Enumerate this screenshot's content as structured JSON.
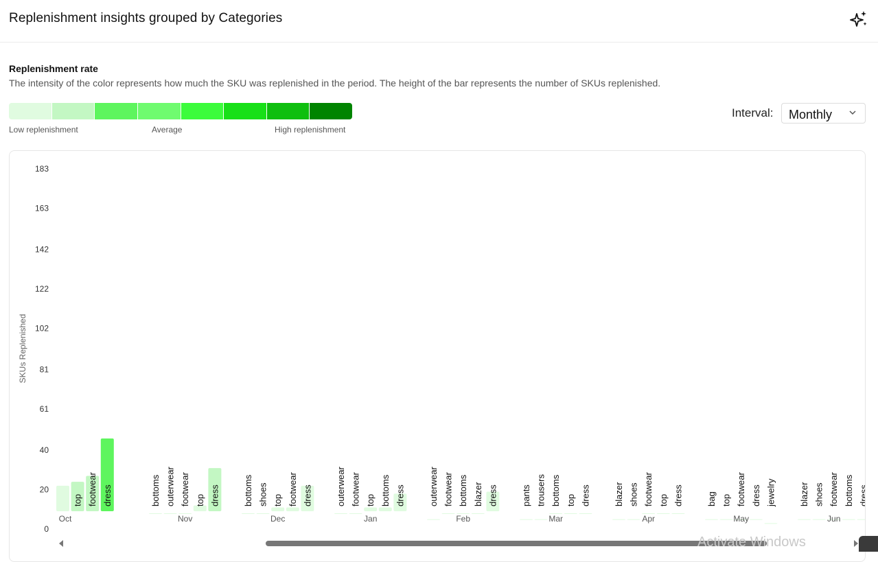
{
  "header": {
    "title": "Replenishment insights grouped by Categories",
    "sparkle_icon": "sparkle-icon"
  },
  "legend": {
    "title": "Replenishment rate",
    "description": "The intensity of the color represents how much the SKU was replenished in the period. The height of the bar represents the number of SKUs replenished.",
    "scale_colors": [
      "#e0fbe0",
      "#c3f7c3",
      "#5ef55e",
      "#6ffb6f",
      "#3cfc3c",
      "#18e018",
      "#0fbf0f",
      "#008400"
    ],
    "low_label": "Low replenishment",
    "avg_label": "Average",
    "high_label": "High replenishment"
  },
  "interval": {
    "label": "Interval:",
    "value": "Monthly"
  },
  "watermark": "Activate Windows",
  "chart_data": {
    "type": "bar",
    "ylabel": "SKUs Replenished",
    "yticks": [
      0,
      20,
      40,
      61,
      81,
      102,
      122,
      142,
      163,
      183
    ],
    "ylim": [
      0,
      183
    ],
    "months": [
      {
        "label": "Oct",
        "bars": [
          {
            "category": "",
            "value": 22,
            "color": "#e0fbe0"
          },
          {
            "category": "top",
            "value": 24,
            "color": "#c3f7c3"
          },
          {
            "category": "footwear",
            "value": 27,
            "color": "#c3f7c3"
          },
          {
            "category": "dress",
            "value": 46,
            "color": "#5ef55e"
          }
        ]
      },
      {
        "label": "Nov",
        "bars": [
          {
            "category": "bottoms",
            "value": 8,
            "color": "#e0fbe0"
          },
          {
            "category": "outerwear",
            "value": 8,
            "color": "#e0fbe0"
          },
          {
            "category": "footwear",
            "value": 8,
            "color": "#e0fbe0"
          },
          {
            "category": "top",
            "value": 12,
            "color": "#e0fbe0"
          },
          {
            "category": "dress",
            "value": 31,
            "color": "#c3f7c3"
          }
        ]
      },
      {
        "label": "Dec",
        "bars": [
          {
            "category": "bottoms",
            "value": 8,
            "color": "#e0fbe0"
          },
          {
            "category": "shoes",
            "value": 8,
            "color": "#e0fbe0"
          },
          {
            "category": "top",
            "value": 11,
            "color": "#e0fbe0"
          },
          {
            "category": "footwear",
            "value": 11,
            "color": "#e0fbe0"
          },
          {
            "category": "dress",
            "value": 22,
            "color": "#e0fbe0"
          }
        ]
      },
      {
        "label": "Jan",
        "bars": [
          {
            "category": "outerwear",
            "value": 8,
            "color": "#e0fbe0"
          },
          {
            "category": "footwear",
            "value": 8,
            "color": "#e0fbe0"
          },
          {
            "category": "top",
            "value": 11,
            "color": "#e0fbe0"
          },
          {
            "category": "bottoms",
            "value": 11,
            "color": "#e0fbe0"
          },
          {
            "category": "dress",
            "value": 18,
            "color": "#e0fbe0"
          }
        ]
      },
      {
        "label": "Feb",
        "bars": [
          {
            "category": "outerwear",
            "value": 5,
            "color": "#e0fbe0"
          },
          {
            "category": "footwear",
            "value": 8,
            "color": "#e0fbe0"
          },
          {
            "category": "bottoms",
            "value": 8,
            "color": "#e0fbe0"
          },
          {
            "category": "blazer",
            "value": 8,
            "color": "#e0fbe0"
          },
          {
            "category": "dress",
            "value": 19,
            "color": "#e0fbe0"
          }
        ]
      },
      {
        "label": "Mar",
        "bars": [
          {
            "category": "pants",
            "value": 5,
            "color": "#e0fbe0"
          },
          {
            "category": "trousers",
            "value": 5,
            "color": "#e0fbe0"
          },
          {
            "category": "bottoms",
            "value": 8,
            "color": "#e0fbe0"
          },
          {
            "category": "top",
            "value": 8,
            "color": "#e0fbe0"
          },
          {
            "category": "dress",
            "value": 8,
            "color": "#e0fbe0"
          }
        ]
      },
      {
        "label": "Apr",
        "bars": [
          {
            "category": "blazer",
            "value": 5,
            "color": "#e0fbe0"
          },
          {
            "category": "shoes",
            "value": 5,
            "color": "#e0fbe0"
          },
          {
            "category": "footwear",
            "value": 8,
            "color": "#e0fbe0"
          },
          {
            "category": "top",
            "value": 8,
            "color": "#e0fbe0"
          },
          {
            "category": "dress",
            "value": 8,
            "color": "#e0fbe0"
          }
        ]
      },
      {
        "label": "May",
        "bars": [
          {
            "category": "bag",
            "value": 5,
            "color": "#e0fbe0"
          },
          {
            "category": "top",
            "value": 5,
            "color": "#e0fbe0"
          },
          {
            "category": "footwear",
            "value": 5,
            "color": "#e0fbe0"
          },
          {
            "category": "dress",
            "value": 5,
            "color": "#e0fbe0"
          },
          {
            "category": "jewelry",
            "value": 3,
            "color": "#e0fbe0"
          }
        ]
      },
      {
        "label": "Jun",
        "bars": [
          {
            "category": "blazer",
            "value": 5,
            "color": "#e0fbe0"
          },
          {
            "category": "shoes",
            "value": 5,
            "color": "#e0fbe0"
          },
          {
            "category": "footwear",
            "value": 5,
            "color": "#e0fbe0"
          },
          {
            "category": "bottoms",
            "value": 5,
            "color": "#e0fbe0"
          },
          {
            "category": "dress",
            "value": 5,
            "color": "#e0fbe0"
          }
        ]
      }
    ]
  }
}
